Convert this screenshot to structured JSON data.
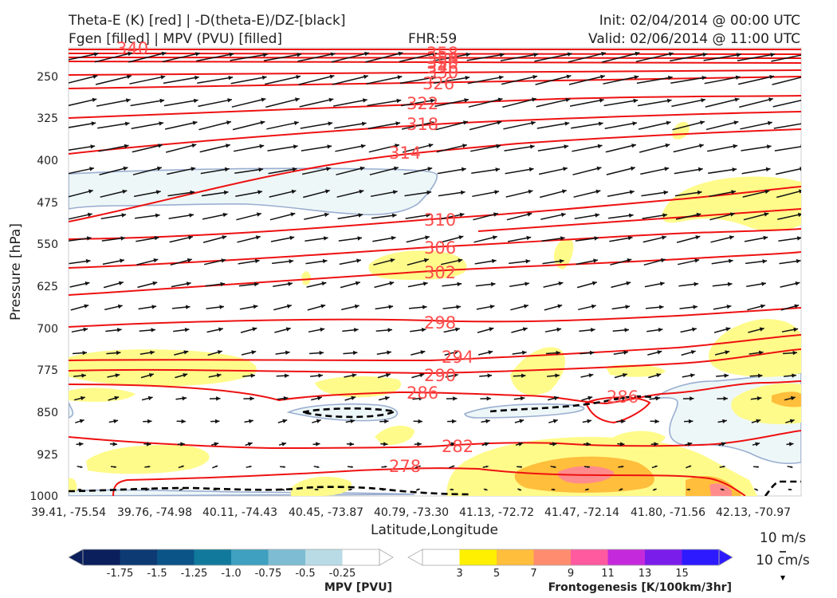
{
  "header": {
    "title_left_1": "Theta-E (K) [red] | -D(theta-E)/DZ-[black]",
    "title_left_2": "Fgen [filled] | MPV (PVU) [filled]",
    "fhr": "FHR:59",
    "init": "Init: 02/04/2014 @ 00:00 UTC",
    "valid": "Valid: 02/06/2014 @ 11:00 UTC"
  },
  "chart_data": {
    "type": "cross-section",
    "xlabel": "Latitude,Longitude",
    "ylabel": "Pressure [hPa]",
    "y_axis_inverted": true,
    "ylim": [
      1000,
      200
    ],
    "y_ticks": [
      "250",
      "325",
      "400",
      "475",
      "550",
      "625",
      "700",
      "775",
      "850",
      "925",
      "1000"
    ],
    "x_ticks": [
      "39.41, -75.54",
      "39.76, -74.98",
      "40.11, -74.43",
      "40.45, -73.87",
      "40.79, -73.30",
      "41.13, -72.72",
      "41.47, -72.14",
      "41.80, -71.56",
      "42.13, -70.97"
    ],
    "theta_e_contour_labels": [
      "340",
      "358",
      "354",
      "350",
      "346",
      "330",
      "326",
      "322",
      "318",
      "314",
      "310",
      "306",
      "302",
      "298",
      "294",
      "290",
      "286",
      "286",
      "282",
      "278"
    ],
    "wind_reference": [
      "10 m/s",
      "10 cm/s"
    ],
    "colorbars": {
      "mpv": {
        "label": "MPV [PVU]",
        "ticks": [
          "-1.75",
          "-1.5",
          "-1.25",
          "-1.0",
          "-0.75",
          "-0.5",
          "-0.25"
        ],
        "colors": [
          "#0a1f5c",
          "#0d3a73",
          "#0a5487",
          "#117a9c",
          "#3fa0bf",
          "#7dbcd2",
          "#b8dbe6",
          "#ffffff"
        ]
      },
      "fgen": {
        "label": "Frontogenesis [K/100km/3hr]",
        "ticks": [
          "3",
          "5",
          "7",
          "9",
          "11",
          "13",
          "15"
        ],
        "colors": [
          "#ffffff",
          "#fff000",
          "#ffbe3c",
          "#ff8c6e",
          "#ff5aa0",
          "#c42adb",
          "#7b1dea",
          "#2d1aff"
        ]
      }
    },
    "colors": {
      "theta_e": "#ee1111",
      "theta_e_label": "#ff4d4d",
      "neg_stability": "#000000",
      "mpv_outline": "#9aaed0",
      "mpv_fill": "#eef7f8",
      "fgen_light": "#fffb8a",
      "fgen_mid": "#ffbe3c",
      "fgen_high": "#ff8c8c"
    }
  }
}
